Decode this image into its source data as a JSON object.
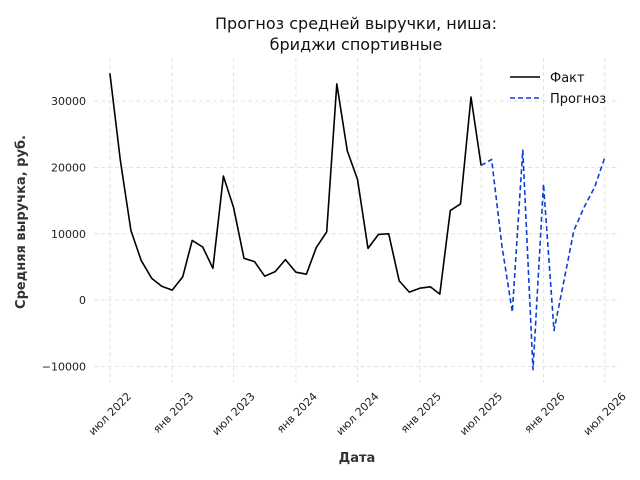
{
  "chart_data": {
    "type": "line",
    "title_line1": "Прогноз средней выручки, ниша:",
    "title_line2": "бриджи спортивные",
    "xlabel": "Дата",
    "ylabel": "Средняя выручка, руб.",
    "ylim": [
      -12500,
      36500
    ],
    "xlim": [
      "2022-05-15",
      "2026-08-15"
    ],
    "grid": true,
    "legend_position": "top-right",
    "y_ticks": [
      -10000,
      0,
      10000,
      20000,
      30000
    ],
    "y_tick_labels": [
      "−10000",
      "0",
      "10000",
      "20000",
      "30000"
    ],
    "x_ticks": [
      "2022-07-01",
      "2023-01-01",
      "2023-07-01",
      "2024-01-01",
      "2024-07-01",
      "2025-01-01",
      "2025-07-01",
      "2026-01-01",
      "2026-07-01"
    ],
    "x_tick_labels": [
      "июл 2022",
      "янв 2023",
      "июл 2023",
      "янв 2024",
      "июл 2024",
      "янв 2025",
      "июл 2025",
      "янв 2026",
      "июл 2026"
    ],
    "series": [
      {
        "name": "Факт",
        "color": "#000000",
        "style": "solid",
        "x": [
          "2022-07-01",
          "2022-08-01",
          "2022-09-01",
          "2022-10-01",
          "2022-11-01",
          "2022-12-01",
          "2023-01-01",
          "2023-02-01",
          "2023-03-01",
          "2023-04-01",
          "2023-05-01",
          "2023-06-01",
          "2023-07-01",
          "2023-08-01",
          "2023-09-01",
          "2023-10-01",
          "2023-11-01",
          "2023-12-01",
          "2024-01-01",
          "2024-02-01",
          "2024-03-01",
          "2024-04-01",
          "2024-05-01",
          "2024-06-01",
          "2024-07-01",
          "2024-08-01",
          "2024-09-01",
          "2024-10-01",
          "2024-11-01",
          "2024-12-01",
          "2025-01-01",
          "2025-02-01",
          "2025-03-01",
          "2025-04-01",
          "2025-05-01",
          "2025-06-01",
          "2025-07-01"
        ],
        "values": [
          34200,
          21000,
          10500,
          6000,
          3300,
          2100,
          1500,
          3500,
          9000,
          8000,
          4800,
          18700,
          14000,
          6300,
          5800,
          3600,
          4300,
          6100,
          4200,
          3900,
          7900,
          10300,
          32600,
          22500,
          18200,
          7800,
          9900,
          10000,
          2900,
          1200,
          1800,
          2000,
          900,
          13500,
          14500,
          30600,
          20300
        ]
      },
      {
        "name": "Прогноз",
        "color": "#0b3fd6",
        "style": "dashed",
        "x": [
          "2025-07-01",
          "2025-08-01",
          "2025-09-01",
          "2025-10-01",
          "2025-11-01",
          "2025-12-01",
          "2026-01-01",
          "2026-02-01",
          "2026-03-01",
          "2026-04-01",
          "2026-05-01",
          "2026-06-01",
          "2026-07-01"
        ],
        "values": [
          20300,
          21200,
          8000,
          -1800,
          22600,
          -10500,
          17500,
          -4600,
          2500,
          10500,
          14000,
          17000,
          21500
        ]
      }
    ]
  }
}
